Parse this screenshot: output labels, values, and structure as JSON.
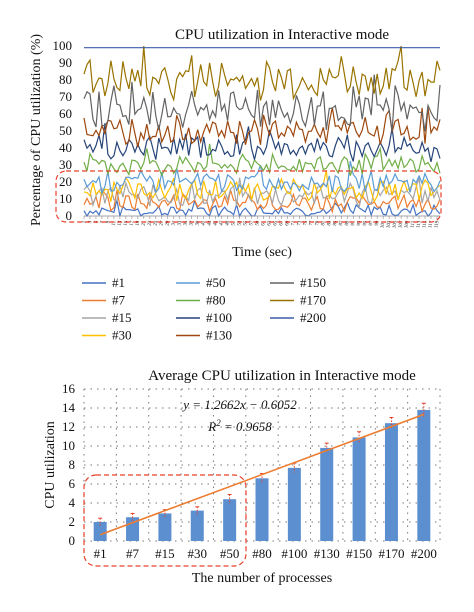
{
  "chart_data": [
    {
      "type": "line",
      "title": "CPU utilization in Interactive mode",
      "xlabel": "Time (sec)",
      "ylabel": "Percentage of CPU utilization (%)",
      "ylim": [
        0,
        100
      ],
      "yticks": [
        0,
        10,
        20,
        30,
        40,
        50,
        60,
        70,
        80,
        90,
        100
      ],
      "grid": false,
      "legend_position": "bottom",
      "samples": 120,
      "series": [
        {
          "name": "#1",
          "color": "#4472c4",
          "mean": 3,
          "amp": 3
        },
        {
          "name": "#7",
          "color": "#ed7d31",
          "mean": 8,
          "amp": 4
        },
        {
          "name": "#15",
          "color": "#a5a5a5",
          "mean": 12,
          "amp": 5
        },
        {
          "name": "#30",
          "color": "#ffc000",
          "mean": 15,
          "amp": 5
        },
        {
          "name": "#50",
          "color": "#5b9bd5",
          "mean": 20,
          "amp": 5
        },
        {
          "name": "#80",
          "color": "#70ad47",
          "mean": 30,
          "amp": 5
        },
        {
          "name": "#100",
          "color": "#264478",
          "mean": 40,
          "amp": 6
        },
        {
          "name": "#130",
          "color": "#9e480e",
          "mean": 50,
          "amp": 7
        },
        {
          "name": "#150",
          "color": "#636363",
          "mean": 62,
          "amp": 9
        },
        {
          "name": "#170",
          "color": "#997300",
          "mean": 80,
          "amp": 9
        },
        {
          "name": "#200",
          "color": "#3a5ba8",
          "mean": 99,
          "amp": 0
        }
      ]
    },
    {
      "type": "bar",
      "title": "Average CPU utilization in Interactive mode",
      "xlabel": "The number of processes",
      "ylabel": "CPU utilization",
      "ylim": [
        0,
        16
      ],
      "yticks": [
        0,
        2,
        4,
        6,
        8,
        10,
        12,
        14,
        16
      ],
      "grid": true,
      "categories": [
        "#1",
        "#7",
        "#15",
        "#30",
        "#50",
        "#80",
        "#100",
        "#130",
        "#150",
        "#170",
        "#200"
      ],
      "values": [
        2.0,
        2.5,
        2.9,
        3.2,
        4.4,
        6.6,
        7.7,
        9.8,
        10.9,
        12.4,
        13.8
      ],
      "errors": [
        0.4,
        0.4,
        0.4,
        0.4,
        0.5,
        0.5,
        0.5,
        0.5,
        0.6,
        0.6,
        0.7
      ],
      "bar_color": "#5b8fd0",
      "trendline": {
        "equation": "y = 1.2662x − 0.6052",
        "r2_label": "R",
        "r2_sup": "2",
        "r2_value": " = 0.9658",
        "slope": 1.2662,
        "intercept": -0.6052,
        "color": "#ed7d31"
      }
    }
  ]
}
